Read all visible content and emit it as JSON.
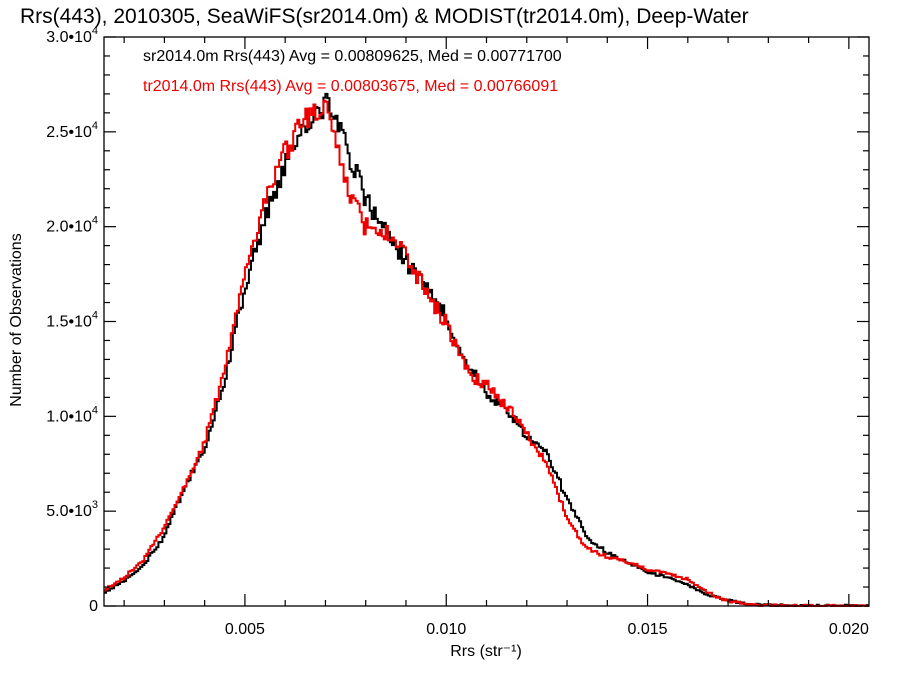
{
  "chart_data": {
    "type": "histogram-step",
    "title": "Rrs(443), 2010305, SeaWiFS(sr2014.0m) & MODIST(tr2014.0m), Deep-Water",
    "xlabel": "Rrs (str⁻¹)",
    "ylabel": "Number of Observations",
    "xlim": [
      0.0015,
      0.0205
    ],
    "ylim": [
      0,
      30000
    ],
    "x_ticks": [
      {
        "value": 0.005,
        "label": "0.005"
      },
      {
        "value": 0.01,
        "label": "0.010"
      },
      {
        "value": 0.015,
        "label": "0.015"
      },
      {
        "value": 0.02,
        "label": "0.020"
      }
    ],
    "y_ticks": [
      {
        "value": 0,
        "mant": "0",
        "exp": ""
      },
      {
        "value": 5000,
        "mant": "5.0•10",
        "exp": "3"
      },
      {
        "value": 10000,
        "mant": "1.0•10",
        "exp": "4"
      },
      {
        "value": 15000,
        "mant": "1.5•10",
        "exp": "4"
      },
      {
        "value": 20000,
        "mant": "2.0•10",
        "exp": "4"
      },
      {
        "value": 25000,
        "mant": "2.5•10",
        "exp": "4"
      },
      {
        "value": 30000,
        "mant": "3.0•10",
        "exp": "4"
      }
    ],
    "annotations": [
      {
        "text": "sr2014.0m Rrs(443) Avg = 0.00809625, Med = 0.00771700",
        "color": "#000000"
      },
      {
        "text": "tr2014.0m Rrs(443) Avg = 0.00803675, Med = 0.00766091",
        "color": "#ee0000"
      }
    ],
    "series": [
      {
        "name": "sr2014.0m",
        "color": "#000000",
        "points": [
          [
            0.0015,
            700
          ],
          [
            0.002,
            1300
          ],
          [
            0.0025,
            2200
          ],
          [
            0.003,
            3700
          ],
          [
            0.0035,
            6200
          ],
          [
            0.004,
            8300
          ],
          [
            0.0045,
            11800
          ],
          [
            0.005,
            16800
          ],
          [
            0.0055,
            20500
          ],
          [
            0.006,
            23200
          ],
          [
            0.0065,
            25200
          ],
          [
            0.0068,
            26200
          ],
          [
            0.007,
            26400
          ],
          [
            0.0072,
            26100
          ],
          [
            0.0075,
            24300
          ],
          [
            0.008,
            21500
          ],
          [
            0.0085,
            19600
          ],
          [
            0.009,
            18200
          ],
          [
            0.0095,
            16700
          ],
          [
            0.01,
            15300
          ],
          [
            0.0105,
            12800
          ],
          [
            0.011,
            11300
          ],
          [
            0.0115,
            10300
          ],
          [
            0.012,
            9000
          ],
          [
            0.0125,
            8000
          ],
          [
            0.013,
            5700
          ],
          [
            0.0135,
            3600
          ],
          [
            0.014,
            2800
          ],
          [
            0.0145,
            2300
          ],
          [
            0.015,
            1800
          ],
          [
            0.0155,
            1500
          ],
          [
            0.016,
            1100
          ],
          [
            0.0165,
            600
          ],
          [
            0.017,
            300
          ],
          [
            0.0175,
            100
          ],
          [
            0.018,
            50
          ],
          [
            0.019,
            10
          ],
          [
            0.0205,
            0
          ]
        ]
      },
      {
        "name": "tr2014.0m",
        "color": "#ee0000",
        "points": [
          [
            0.0015,
            800
          ],
          [
            0.002,
            1500
          ],
          [
            0.0025,
            2500
          ],
          [
            0.003,
            4200
          ],
          [
            0.0035,
            6300
          ],
          [
            0.004,
            8700
          ],
          [
            0.0045,
            12400
          ],
          [
            0.005,
            17400
          ],
          [
            0.0055,
            21300
          ],
          [
            0.006,
            24000
          ],
          [
            0.0065,
            25600
          ],
          [
            0.0068,
            26000
          ],
          [
            0.007,
            26200
          ],
          [
            0.0072,
            25300
          ],
          [
            0.0075,
            22300
          ],
          [
            0.008,
            20000
          ],
          [
            0.0085,
            19700
          ],
          [
            0.009,
            18600
          ],
          [
            0.0095,
            16500
          ],
          [
            0.01,
            14900
          ],
          [
            0.0105,
            12400
          ],
          [
            0.011,
            11600
          ],
          [
            0.0115,
            10600
          ],
          [
            0.012,
            9100
          ],
          [
            0.0125,
            7500
          ],
          [
            0.013,
            4600
          ],
          [
            0.0135,
            3000
          ],
          [
            0.014,
            2600
          ],
          [
            0.0145,
            2300
          ],
          [
            0.015,
            1900
          ],
          [
            0.0155,
            1700
          ],
          [
            0.016,
            1400
          ],
          [
            0.0165,
            700
          ],
          [
            0.017,
            250
          ],
          [
            0.0175,
            80
          ],
          [
            0.018,
            30
          ],
          [
            0.019,
            10
          ],
          [
            0.0205,
            0
          ]
        ]
      }
    ]
  }
}
